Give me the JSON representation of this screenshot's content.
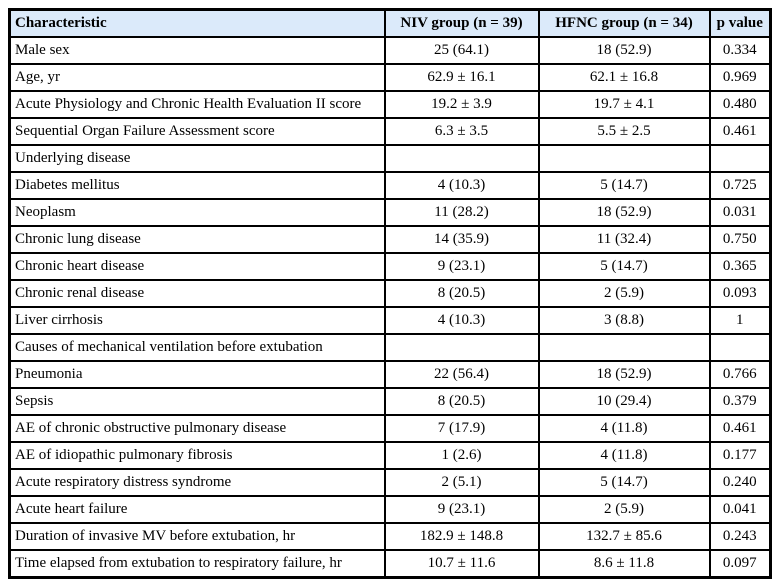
{
  "colors": {
    "header_bg": "#dbeafa",
    "border": "#000000"
  },
  "table": {
    "columns": [
      "Characteristic",
      "NIV group (n = 39)",
      "HFNC group (n = 34)",
      "p value"
    ],
    "rows": [
      [
        "Male sex",
        "25 (64.1)",
        "18 (52.9)",
        "0.334"
      ],
      [
        "Age, yr",
        "62.9 ± 16.1",
        "62.1 ± 16.8",
        "0.969"
      ],
      [
        "Acute Physiology and Chronic Health Evaluation II score",
        "19.2 ± 3.9",
        "19.7 ± 4.1",
        "0.480"
      ],
      [
        "Sequential Organ Failure Assessment score",
        "6.3 ± 3.5",
        "5.5 ± 2.5",
        "0.461"
      ],
      [
        "Underlying disease",
        "",
        "",
        ""
      ],
      [
        "Diabetes mellitus",
        "4 (10.3)",
        "5 (14.7)",
        "0.725"
      ],
      [
        "Neoplasm",
        "11 (28.2)",
        "18 (52.9)",
        "0.031"
      ],
      [
        "Chronic lung disease",
        "14 (35.9)",
        "11 (32.4)",
        "0.750"
      ],
      [
        "Chronic heart disease",
        "9 (23.1)",
        "5 (14.7)",
        "0.365"
      ],
      [
        "Chronic renal disease",
        "8 (20.5)",
        "2 (5.9)",
        "0.093"
      ],
      [
        "Liver cirrhosis",
        "4 (10.3)",
        "3 (8.8)",
        "1"
      ],
      [
        "Causes of mechanical ventilation before extubation",
        "",
        "",
        ""
      ],
      [
        "Pneumonia",
        "22 (56.4)",
        "18 (52.9)",
        "0.766"
      ],
      [
        "Sepsis",
        "8 (20.5)",
        "10 (29.4)",
        "0.379"
      ],
      [
        "AE of chronic obstructive pulmonary disease",
        "7 (17.9)",
        "4 (11.8)",
        "0.461"
      ],
      [
        "AE of idiopathic pulmonary fibrosis",
        "1 (2.6)",
        "4 (11.8)",
        "0.177"
      ],
      [
        "Acute respiratory distress syndrome",
        "2 (5.1)",
        "5 (14.7)",
        "0.240"
      ],
      [
        "Acute heart failure",
        "9 (23.1)",
        "2 (5.9)",
        "0.041"
      ],
      [
        "Duration of invasive MV before extubation, hr",
        "182.9 ± 148.8",
        "132.7 ± 85.6",
        "0.243"
      ],
      [
        "Time elapsed from extubation to respiratory failure, hr",
        "10.7 ± 11.6",
        "8.6 ± 11.8",
        "0.097"
      ]
    ]
  }
}
